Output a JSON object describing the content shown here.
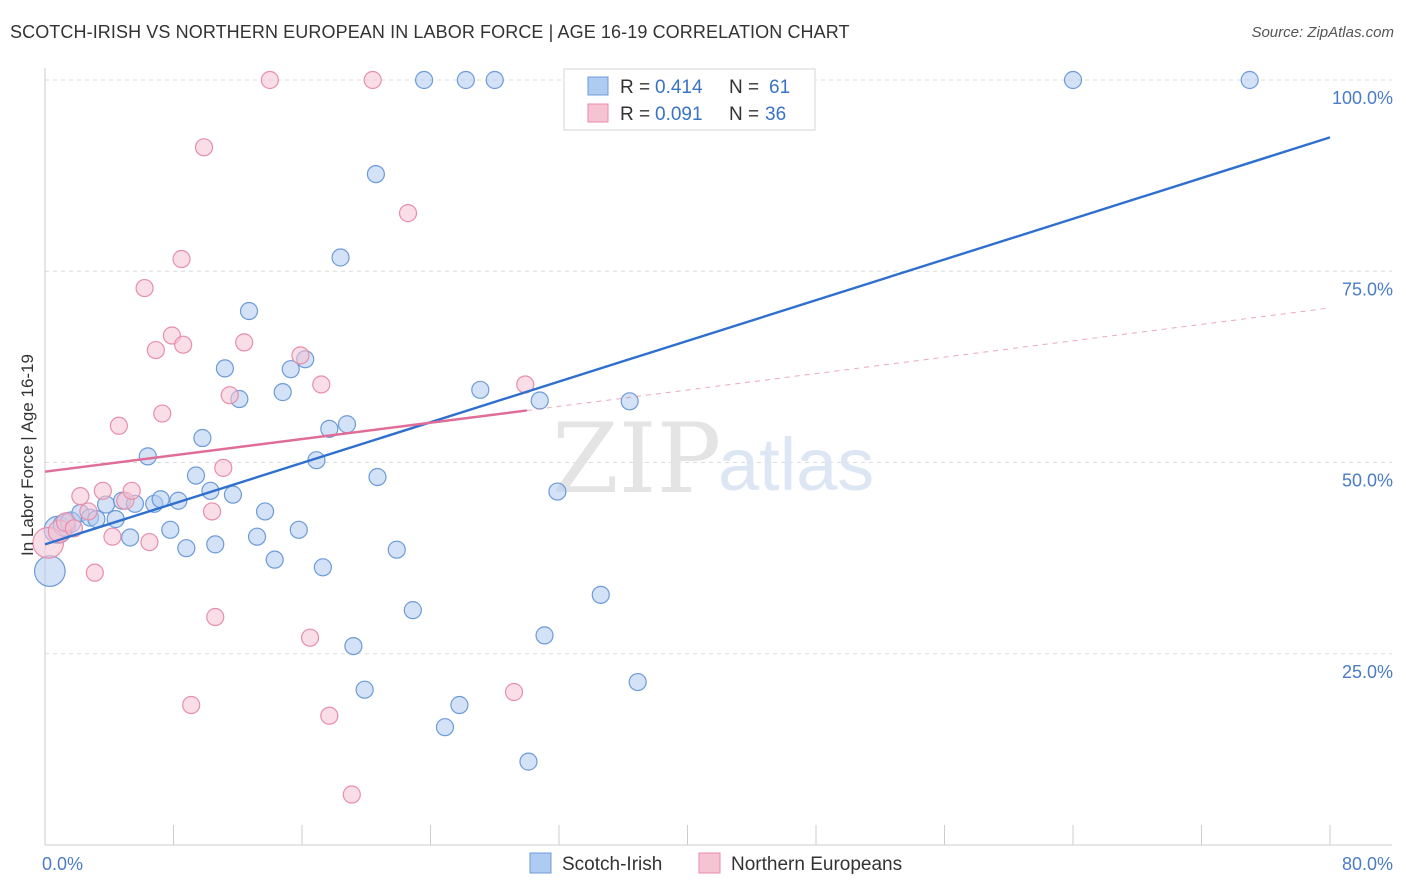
{
  "title": "SCOTCH-IRISH VS NORTHERN EUROPEAN IN LABOR FORCE | AGE 16-19 CORRELATION CHART",
  "source": "Source: ZipAtlas.com",
  "watermark": {
    "zip": "ZIP",
    "atlas": "atlas"
  },
  "colors": {
    "blue_fill": "#aecbf1",
    "blue_stroke": "#6d9bd8",
    "blue_line": "#2f6fce",
    "pink_fill": "#f6c3d3",
    "pink_stroke": "#e88eab",
    "pink_line": "#e06d97",
    "tick_text": "#4a7cc7",
    "grid": "#dcdcdc"
  },
  "chart_data": {
    "type": "scatter",
    "xlabel": "",
    "ylabel": "In Labor Force | Age 16-19",
    "xlim": [
      0,
      80
    ],
    "ylim": [
      0,
      100
    ],
    "x_tick_labels": [
      "0.0%",
      "80.0%"
    ],
    "y_ticks": [
      25,
      50,
      75,
      100
    ],
    "y_tick_labels": [
      "25.0%",
      "50.0%",
      "75.0%",
      "100.0%"
    ],
    "grid": true,
    "legend_placement": "top-center",
    "legend": [
      {
        "r_label": "R = ",
        "r_value": "0.414",
        "n_label": "N = ",
        "n_value": "61"
      },
      {
        "r_label": "R = ",
        "r_value": "0.091",
        "n_label": "N = ",
        "n_value": "36"
      }
    ],
    "series": [
      {
        "name": "Scotch-Irish",
        "color": "#aecbf1",
        "trend": {
          "x": [
            0,
            80
          ],
          "y": [
            39.3,
            92.5
          ],
          "style": "solid"
        },
        "points": [
          {
            "x": 0.3,
            "y": 35.8,
            "size": 1.8
          },
          {
            "x": 0.8,
            "y": 41.2,
            "size": 1.6
          },
          {
            "x": 1.2,
            "y": 41.8,
            "size": 1.3
          },
          {
            "x": 1.6,
            "y": 42.2,
            "size": 1.2
          },
          {
            "x": 2.2,
            "y": 43.4,
            "size": 1.0
          },
          {
            "x": 2.8,
            "y": 42.8,
            "size": 1.0
          },
          {
            "x": 3.2,
            "y": 42.6,
            "size": 1.0
          },
          {
            "x": 3.8,
            "y": 44.5,
            "size": 1.0
          },
          {
            "x": 4.4,
            "y": 42.6,
            "size": 1.0
          },
          {
            "x": 4.8,
            "y": 45.0,
            "size": 1.0
          },
          {
            "x": 5.3,
            "y": 40.2,
            "size": 1.0
          },
          {
            "x": 5.6,
            "y": 44.6,
            "size": 1.0
          },
          {
            "x": 6.4,
            "y": 50.8,
            "size": 1.0
          },
          {
            "x": 6.8,
            "y": 44.6,
            "size": 1.0
          },
          {
            "x": 7.2,
            "y": 45.2,
            "size": 1.0
          },
          {
            "x": 7.8,
            "y": 41.2,
            "size": 1.0
          },
          {
            "x": 8.3,
            "y": 45.0,
            "size": 1.0
          },
          {
            "x": 8.8,
            "y": 38.8,
            "size": 1.0
          },
          {
            "x": 9.4,
            "y": 48.3,
            "size": 1.0
          },
          {
            "x": 9.8,
            "y": 53.2,
            "size": 1.0
          },
          {
            "x": 10.3,
            "y": 46.3,
            "size": 1.0
          },
          {
            "x": 10.6,
            "y": 39.3,
            "size": 1.0
          },
          {
            "x": 11.2,
            "y": 62.3,
            "size": 1.0
          },
          {
            "x": 11.7,
            "y": 45.8,
            "size": 1.0
          },
          {
            "x": 12.1,
            "y": 58.3,
            "size": 1.0
          },
          {
            "x": 12.7,
            "y": 69.8,
            "size": 1.0
          },
          {
            "x": 13.2,
            "y": 40.3,
            "size": 1.0
          },
          {
            "x": 13.7,
            "y": 43.6,
            "size": 1.0
          },
          {
            "x": 14.3,
            "y": 37.3,
            "size": 1.0
          },
          {
            "x": 14.8,
            "y": 59.2,
            "size": 1.0
          },
          {
            "x": 15.3,
            "y": 62.2,
            "size": 1.0
          },
          {
            "x": 15.8,
            "y": 41.2,
            "size": 1.0
          },
          {
            "x": 16.2,
            "y": 63.5,
            "size": 1.0
          },
          {
            "x": 16.9,
            "y": 50.3,
            "size": 1.0
          },
          {
            "x": 17.3,
            "y": 36.3,
            "size": 1.0
          },
          {
            "x": 17.7,
            "y": 54.4,
            "size": 1.0
          },
          {
            "x": 18.4,
            "y": 76.8,
            "size": 1.0
          },
          {
            "x": 18.8,
            "y": 55.0,
            "size": 1.0
          },
          {
            "x": 19.2,
            "y": 26.0,
            "size": 1.0
          },
          {
            "x": 19.9,
            "y": 20.3,
            "size": 1.0
          },
          {
            "x": 20.6,
            "y": 87.7,
            "size": 1.0
          },
          {
            "x": 20.7,
            "y": 48.1,
            "size": 1.0
          },
          {
            "x": 21.9,
            "y": 38.6,
            "size": 1.0
          },
          {
            "x": 22.9,
            "y": 30.7,
            "size": 1.0
          },
          {
            "x": 23.6,
            "y": 100.0,
            "size": 1.0
          },
          {
            "x": 24.9,
            "y": 15.4,
            "size": 1.0
          },
          {
            "x": 25.8,
            "y": 18.3,
            "size": 1.0
          },
          {
            "x": 26.2,
            "y": 100.0,
            "size": 1.0
          },
          {
            "x": 27.1,
            "y": 59.5,
            "size": 1.0
          },
          {
            "x": 28.0,
            "y": 100.0,
            "size": 1.0
          },
          {
            "x": 30.1,
            "y": 10.9,
            "size": 1.0
          },
          {
            "x": 30.8,
            "y": 58.1,
            "size": 1.0
          },
          {
            "x": 31.1,
            "y": 27.4,
            "size": 1.0
          },
          {
            "x": 31.9,
            "y": 46.2,
            "size": 1.0
          },
          {
            "x": 33.0,
            "y": 100.0,
            "size": 1.0
          },
          {
            "x": 34.6,
            "y": 32.7,
            "size": 1.0
          },
          {
            "x": 36.4,
            "y": 58.0,
            "size": 1.0
          },
          {
            "x": 36.9,
            "y": 21.3,
            "size": 1.0
          },
          {
            "x": 64.0,
            "y": 100.0,
            "size": 1.0
          },
          {
            "x": 75.0,
            "y": 100.0,
            "size": 1.0
          },
          {
            "x": 33.5,
            "y": 100.0,
            "size": 1.0
          }
        ]
      },
      {
        "name": "Northern Europeans",
        "color": "#f6c3d3",
        "trend": {
          "x": [
            0,
            30
          ],
          "y": [
            48.8,
            56.8
          ],
          "style": "solid",
          "extension": {
            "x": [
              30,
              80
            ],
            "y": [
              56.8,
              70.2
            ],
            "style": "dashed"
          }
        },
        "points": [
          {
            "x": 0.2,
            "y": 39.5,
            "size": 1.8
          },
          {
            "x": 0.9,
            "y": 41.0,
            "size": 1.3
          },
          {
            "x": 1.3,
            "y": 42.2,
            "size": 1.1
          },
          {
            "x": 2.2,
            "y": 45.6,
            "size": 1.0
          },
          {
            "x": 2.7,
            "y": 43.6,
            "size": 1.0
          },
          {
            "x": 3.1,
            "y": 35.6,
            "size": 1.0
          },
          {
            "x": 3.6,
            "y": 46.3,
            "size": 1.0
          },
          {
            "x": 4.2,
            "y": 40.3,
            "size": 1.0
          },
          {
            "x": 4.6,
            "y": 54.8,
            "size": 1.0
          },
          {
            "x": 5.0,
            "y": 45.0,
            "size": 1.0
          },
          {
            "x": 5.4,
            "y": 46.3,
            "size": 1.0
          },
          {
            "x": 6.2,
            "y": 72.8,
            "size": 1.0
          },
          {
            "x": 6.5,
            "y": 39.6,
            "size": 1.0
          },
          {
            "x": 6.9,
            "y": 64.7,
            "size": 1.0
          },
          {
            "x": 7.3,
            "y": 56.4,
            "size": 1.0
          },
          {
            "x": 7.9,
            "y": 66.6,
            "size": 1.0
          },
          {
            "x": 8.5,
            "y": 76.6,
            "size": 1.0
          },
          {
            "x": 8.6,
            "y": 65.4,
            "size": 1.0
          },
          {
            "x": 9.1,
            "y": 18.3,
            "size": 1.0
          },
          {
            "x": 9.9,
            "y": 91.2,
            "size": 1.0
          },
          {
            "x": 10.4,
            "y": 43.6,
            "size": 1.0
          },
          {
            "x": 10.6,
            "y": 29.8,
            "size": 1.0
          },
          {
            "x": 11.1,
            "y": 49.3,
            "size": 1.0
          },
          {
            "x": 11.5,
            "y": 58.8,
            "size": 1.0
          },
          {
            "x": 12.4,
            "y": 65.7,
            "size": 1.0
          },
          {
            "x": 14.0,
            "y": 100.0,
            "size": 1.0
          },
          {
            "x": 15.9,
            "y": 64.0,
            "size": 1.0
          },
          {
            "x": 16.5,
            "y": 27.1,
            "size": 1.0
          },
          {
            "x": 17.2,
            "y": 60.2,
            "size": 1.0
          },
          {
            "x": 17.7,
            "y": 16.9,
            "size": 1.0
          },
          {
            "x": 19.1,
            "y": 6.6,
            "size": 1.0
          },
          {
            "x": 20.4,
            "y": 100.0,
            "size": 1.0
          },
          {
            "x": 22.6,
            "y": 82.6,
            "size": 1.0
          },
          {
            "x": 29.2,
            "y": 20.0,
            "size": 1.0
          },
          {
            "x": 29.9,
            "y": 60.2,
            "size": 1.0
          },
          {
            "x": 1.8,
            "y": 41.4,
            "size": 1.0
          }
        ]
      }
    ]
  }
}
